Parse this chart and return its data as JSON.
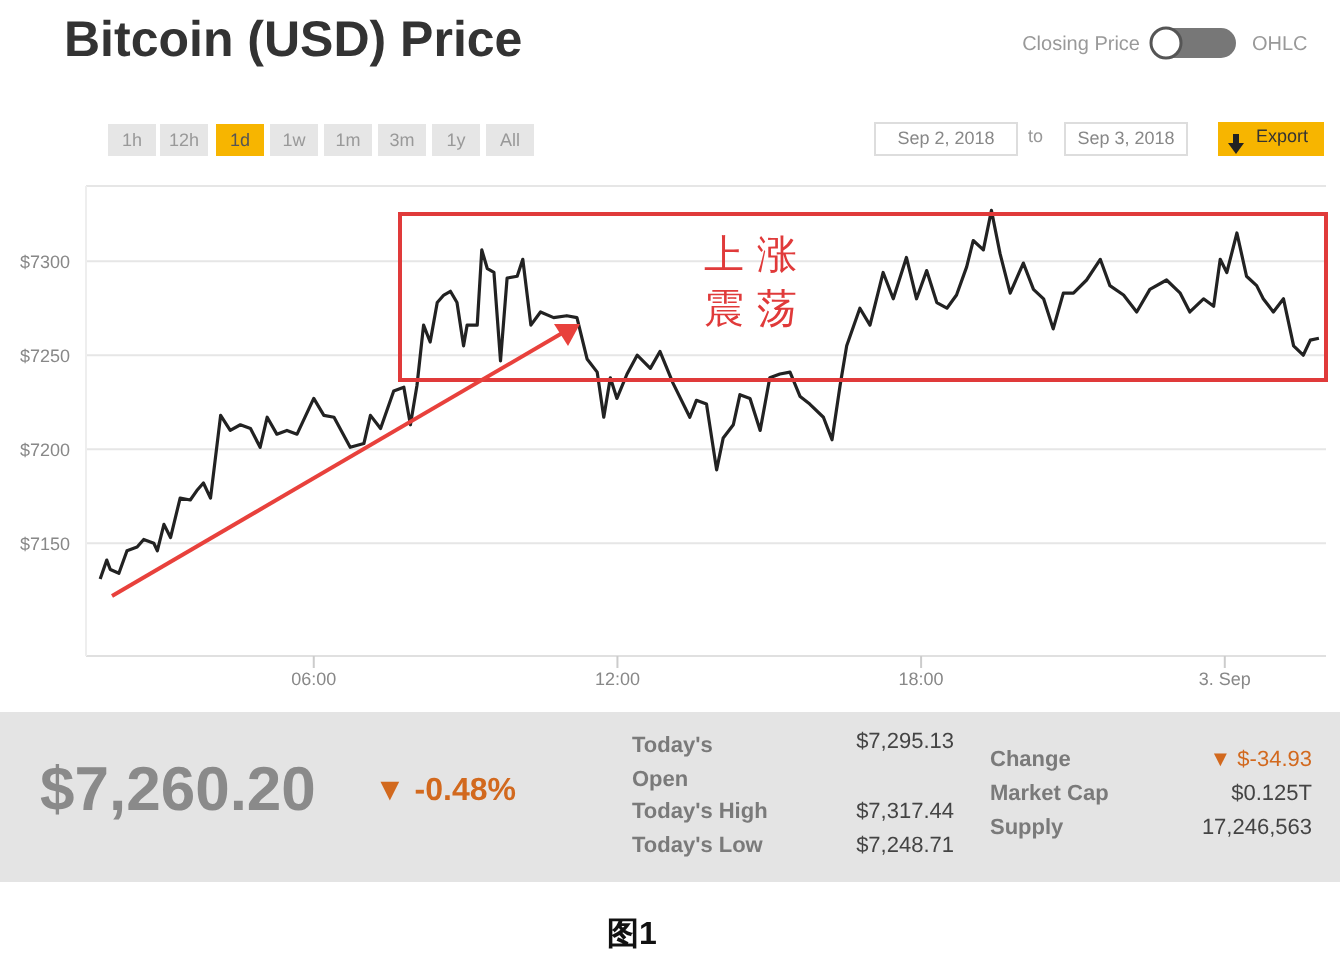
{
  "chart_data": {
    "type": "line",
    "title": "Bitcoin (USD) Price",
    "x": [
      1.78,
      1.91,
      1.98,
      2.15,
      2.31,
      2.51,
      2.64,
      2.84,
      2.91,
      3.04,
      3.17,
      3.36,
      3.56,
      3.69,
      3.82,
      3.96,
      4.16,
      4.35,
      4.55,
      4.75,
      4.94,
      5.08,
      5.27,
      5.47,
      5.67,
      6.0,
      6.2,
      6.4,
      6.72,
      6.99,
      7.12,
      7.32,
      7.58,
      7.78,
      7.91,
      8.04,
      8.17,
      8.3,
      8.44,
      8.57,
      8.7,
      8.83,
      8.96,
      9.03,
      9.23,
      9.32,
      9.43,
      9.56,
      9.69,
      9.82,
      10.02,
      10.13,
      10.29,
      10.48,
      10.74,
      11.0,
      11.2,
      11.4,
      11.6,
      11.73,
      11.86,
      11.99,
      12.19,
      12.39,
      12.65,
      12.84,
      13.1,
      13.43,
      13.56,
      13.76,
      13.96,
      14.09,
      14.29,
      14.42,
      14.62,
      14.82,
      15.01,
      15.21,
      15.41,
      15.61,
      15.8,
      16.07,
      16.24,
      16.4,
      16.53,
      16.79,
      16.99,
      17.25,
      17.45,
      17.71,
      17.91,
      18.11,
      18.31,
      18.51,
      18.7,
      18.9,
      19.03,
      19.23,
      19.39,
      19.56,
      19.76,
      20.02,
      20.22,
      20.42,
      20.61,
      20.81,
      21.01,
      21.27,
      21.54,
      21.73,
      22.0,
      22.26,
      22.52,
      22.85,
      23.12,
      23.31,
      23.58,
      23.78,
      23.91,
      24.04,
      24.24,
      24.43,
      24.63,
      24.76,
      24.96,
      25.16,
      25.36,
      25.55,
      25.69,
      25.86
    ],
    "series": [
      {
        "color": "#222222",
        "values": [
          7131,
          7141,
          7136,
          7134,
          7146,
          7148,
          7152,
          7150,
          7146,
          7160,
          7153,
          7174,
          7173,
          7178,
          7182,
          7174,
          7218,
          7210,
          7213,
          7211,
          7201,
          7217,
          7208,
          7210,
          7208,
          7227,
          7218,
          7217,
          7201,
          7203,
          7218,
          7211,
          7231,
          7233,
          7213,
          7234,
          7266,
          7257,
          7278,
          7282,
          7284,
          7278,
          7255,
          7266,
          7266,
          7306,
          7296,
          7294,
          7247,
          7291,
          7292,
          7301,
          7266,
          7273,
          7270,
          7271,
          7270,
          7248,
          7241,
          7217,
          7238,
          7227,
          7240,
          7250,
          7243,
          7252,
          7235,
          7217,
          7226,
          7224,
          7189,
          7206,
          7213,
          7229,
          7227,
          7210,
          7238,
          7240,
          7241,
          7228,
          7224,
          7217,
          7205,
          7234,
          7255,
          7275,
          7266,
          7294,
          7280,
          7302,
          7280,
          7295,
          7278,
          7275,
          7282,
          7297,
          7311,
          7306,
          7327,
          7304,
          7283,
          7299,
          7285,
          7280,
          7264,
          7283,
          7283,
          7290,
          7301,
          7287,
          7282,
          7273,
          7285,
          7290,
          7283,
          7273,
          7280,
          7276,
          7301,
          7294,
          7315,
          7292,
          7287,
          7280,
          7273,
          7280,
          7255,
          7250,
          7258,
          7259
        ]
      }
    ],
    "xlim": [
      1.5,
      26
    ],
    "xticks": [
      {
        "value": 6,
        "label": "06:00"
      },
      {
        "value": 12,
        "label": "12:00"
      },
      {
        "value": 18,
        "label": "18:00"
      },
      {
        "value": 24,
        "label": "3. Sep"
      }
    ],
    "ylim": [
      7090,
      7340
    ],
    "yticks": [
      {
        "value": 7150,
        "label": "$7150"
      },
      {
        "value": 7200,
        "label": "$7200"
      },
      {
        "value": 7250,
        "label": "$7250"
      },
      {
        "value": 7300,
        "label": "$7300"
      }
    ],
    "grid": "y",
    "marker": "none",
    "line_style": "solid",
    "annotations": [
      "Closing Price",
      "OHLC",
      "1h",
      "12h",
      "1d",
      "1w",
      "1m",
      "3m",
      "1y",
      "All",
      "Sep 2, 2018",
      "to",
      "Sep 3, 2018",
      "Export",
      "上 涨",
      "震 荡",
      "$7,260.20",
      "▼ -0.48%",
      "Today's Open",
      "$7,295.13",
      "Today's High",
      "$7,317.44",
      "Today's Low",
      "$7,248.71",
      "Change",
      "▼ $-34.93",
      "Market Cap",
      "$0.125T",
      "Supply",
      "17,246,563",
      "图1"
    ]
  }
}
